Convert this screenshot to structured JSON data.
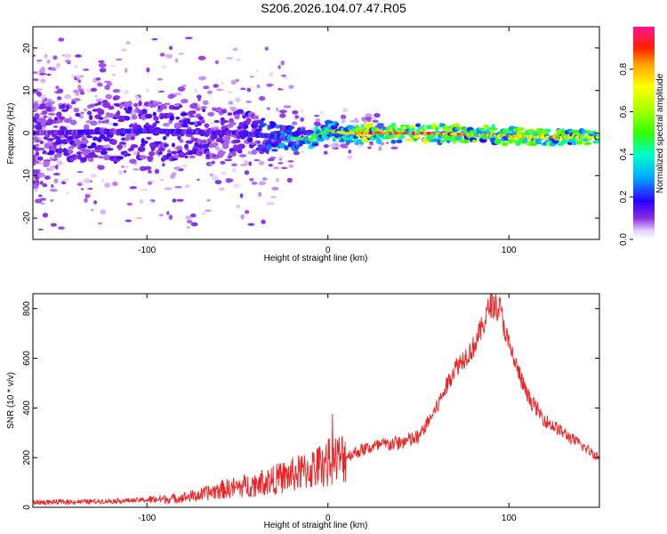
{
  "title": "S206.2026.104.07.47.R05",
  "chart_data": [
    {
      "type": "heatmap",
      "xlabel": "Height of straight line (km)",
      "ylabel": "Frequency (Hz)",
      "xlim": [
        -163,
        150
      ],
      "ylim": [
        -25,
        25
      ],
      "xticks": [
        -100,
        0,
        100
      ],
      "xtick_labels": [
        "-100",
        "0",
        "100"
      ],
      "yticks": [
        -20,
        -10,
        0,
        10,
        20
      ],
      "ytick_labels": [
        "-20",
        "-10",
        "0",
        "10",
        "20"
      ],
      "colorbar": {
        "label": "Normalized spectral amplitude",
        "range": [
          0,
          1
        ],
        "ticks": [
          0.0,
          0.2,
          0.4,
          0.6,
          0.8
        ],
        "tick_labels": [
          "0.0",
          "0.2",
          "0.4",
          "0.6",
          "0.8"
        ],
        "colormap": "rainbow"
      },
      "band": {
        "x": [
          -163,
          -100,
          -50,
          -25,
          -10,
          0,
          10,
          20,
          50,
          90,
          120,
          150
        ],
        "center_hz": [
          0,
          0.5,
          0,
          -1,
          -1.5,
          0.5,
          0,
          0,
          0,
          -0.5,
          -1,
          -1
        ],
        "amplitude": [
          0.2,
          0.25,
          0.2,
          0.4,
          0.55,
          0.55,
          0.75,
          0.95,
          0.95,
          0.8,
          0.85,
          0.75
        ],
        "halfwidth_hz": [
          5,
          5,
          4,
          2,
          1.5,
          1.5,
          1.5,
          1.5,
          1.5,
          1.5,
          1.2,
          1
        ]
      }
    },
    {
      "type": "line",
      "xlabel": "Height of straight line (km)",
      "ylabel": "SNR (10 * v/v)",
      "xlim": [
        -163,
        150
      ],
      "ylim": [
        0,
        860
      ],
      "xticks": [
        -100,
        0,
        100
      ],
      "xtick_labels": [
        "-100",
        "0",
        "100"
      ],
      "yticks": [
        0,
        200,
        400,
        600,
        800
      ],
      "ytick_labels": [
        "0",
        "200",
        "400",
        "600",
        "800"
      ],
      "color": "#ee2222",
      "x": [
        -163,
        -140,
        -120,
        -100,
        -85,
        -70,
        -60,
        -50,
        -40,
        -30,
        -20,
        -10,
        0,
        10,
        20,
        30,
        40,
        50,
        60,
        70,
        80,
        85,
        90,
        95,
        100,
        110,
        120,
        130,
        140,
        150
      ],
      "y": [
        20,
        22,
        25,
        30,
        35,
        50,
        70,
        80,
        95,
        110,
        130,
        150,
        180,
        205,
        235,
        250,
        260,
        280,
        400,
        560,
        640,
        720,
        820,
        800,
        650,
        450,
        350,
        300,
        250,
        200
      ]
    }
  ]
}
